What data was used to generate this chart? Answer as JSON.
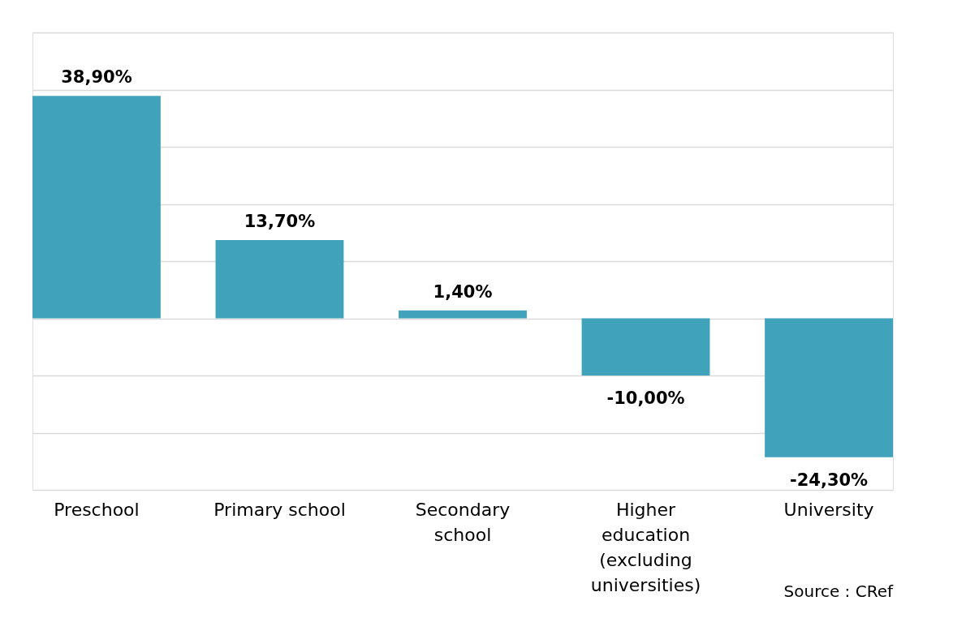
{
  "chart_data": {
    "type": "bar",
    "categories": [
      "Preschool",
      "Primary school",
      "Secondary school",
      "Higher education (excluding universities)",
      "University"
    ],
    "values": [
      38.9,
      13.7,
      1.4,
      -10.0,
      -24.3
    ],
    "value_labels": [
      "38,90%",
      "13,70%",
      "1,40%",
      "-10,00%",
      "-24,30%"
    ],
    "color": "#41a3bb",
    "ylim": [
      -30,
      50
    ],
    "yticks": [
      {
        "value": -30,
        "label": null
      },
      {
        "value": -20,
        "label": null
      },
      {
        "value": -10,
        "label": null
      },
      {
        "value": 0,
        "label": null
      },
      {
        "value": 10,
        "label": null
      },
      {
        "value": 20,
        "label": null
      },
      {
        "value": 30,
        "label": null
      },
      {
        "value": 40,
        "label": null
      },
      {
        "value": 50,
        "label": null
      }
    ],
    "grid": "y",
    "tick_labels": "x",
    "annotations": [
      "Source : CRef"
    ]
  }
}
